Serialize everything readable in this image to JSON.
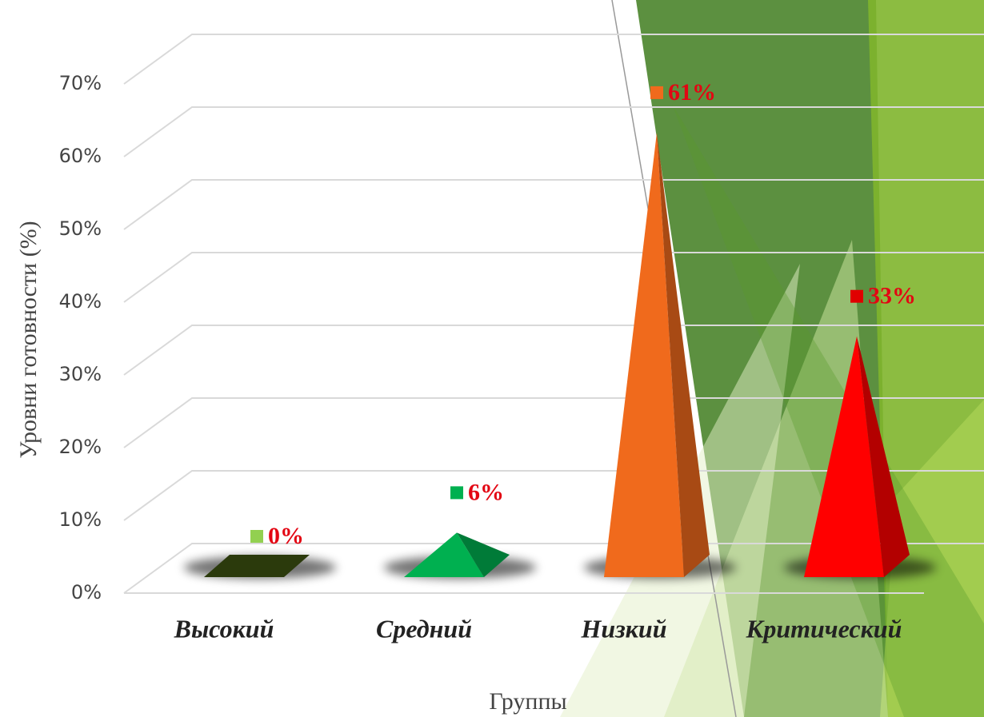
{
  "chart_data": {
    "type": "pyramid3d",
    "categories": [
      "Высокий",
      "Средний",
      "Низкий",
      "Критический"
    ],
    "values": [
      0,
      6,
      61,
      33
    ],
    "value_labels": [
      "0%",
      "6%",
      "61%",
      "33%"
    ],
    "colors": [
      "#2b3a0c",
      "#00b050",
      "#f06a1c",
      "#ff0000"
    ],
    "label_marker_colors": [
      "#92d050",
      "#00b050",
      "#f06a1c",
      "#e00000"
    ],
    "ylim": [
      0,
      70
    ],
    "yticks": [
      {
        "value": 0,
        "label": "0%"
      },
      {
        "value": 10,
        "label": "10%"
      },
      {
        "value": 20,
        "label": "20%"
      },
      {
        "value": 30,
        "label": "30%"
      },
      {
        "value": 40,
        "label": "40%"
      },
      {
        "value": 50,
        "label": "50%"
      },
      {
        "value": 60,
        "label": "60%"
      },
      {
        "value": 70,
        "label": "70%"
      }
    ],
    "y_axis_label": "Уровни готовности (%)",
    "x_axis_label": "Группы",
    "grid": true
  }
}
